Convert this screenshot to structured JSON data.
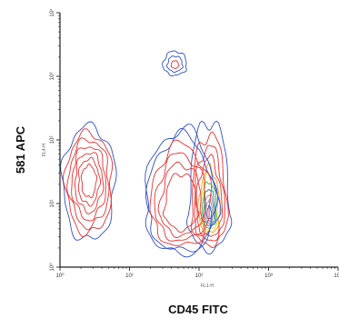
{
  "chart_data": {
    "type": "contour",
    "xlabel": "CD45 FITC",
    "ylabel": "581 APC",
    "x_scale": "log",
    "y_scale": "log",
    "xlim": [
      1,
      10000
    ],
    "ylim": [
      1,
      10000
    ],
    "x_ticks": [
      {
        "value": 1,
        "label": "10⁰"
      },
      {
        "value": 10,
        "label": "10¹"
      },
      {
        "value": 100,
        "label": "10²"
      },
      {
        "value": 1000,
        "label": "10³"
      },
      {
        "value": 10000,
        "label": "10⁴"
      }
    ],
    "y_ticks": [
      {
        "value": 1,
        "label": "10⁰"
      },
      {
        "value": 10,
        "label": "10¹"
      },
      {
        "value": 100,
        "label": "10²"
      },
      {
        "value": 1000,
        "label": "10³"
      },
      {
        "value": 10000,
        "label": "10⁴"
      }
    ],
    "inner_xlabel": "FL1-H",
    "inner_ylabel": "FL4-H",
    "grid": false,
    "populations": [
      {
        "cx": 140,
        "cy": 6.5,
        "wx": 0.3,
        "wyUp": 1.5,
        "wyDown": 0.55,
        "levels": [
          {
            "s": 1.0,
            "color": "#3050c8"
          },
          {
            "s": 0.85,
            "color": "#e83030"
          },
          {
            "s": 0.72,
            "color": "#e83030"
          },
          {
            "s": 0.6,
            "color": "#e83030"
          },
          {
            "s": 0.5,
            "color": "#f0a020"
          },
          {
            "s": 0.42,
            "color": "#e8d020"
          },
          {
            "s": 0.35,
            "color": "#40b040"
          },
          {
            "s": 0.28,
            "color": "#208080"
          },
          {
            "s": 0.22,
            "color": "#9090a0"
          },
          {
            "s": 0.16,
            "color": "#9090a0"
          },
          {
            "s": 0.1,
            "color": "#3050c8"
          }
        ]
      },
      {
        "cx": 55,
        "cy": 8,
        "wx": 0.52,
        "wyUp": 1.25,
        "wyDown": 0.7,
        "levels": [
          {
            "s": 1.0,
            "color": "#3050c8"
          },
          {
            "s": 0.93,
            "color": "#3050c8"
          },
          {
            "s": 0.82,
            "color": "#e83030"
          },
          {
            "s": 0.7,
            "color": "#e83030"
          },
          {
            "s": 0.58,
            "color": "#e83030"
          },
          {
            "s": 0.46,
            "color": "#e83030"
          }
        ]
      },
      {
        "cx": 2.6,
        "cy": 23,
        "wx": 0.38,
        "wyUp": 0.85,
        "wyDown": 0.95,
        "levels": [
          {
            "s": 1.0,
            "color": "#3050c8"
          },
          {
            "s": 0.88,
            "color": "#e83030"
          },
          {
            "s": 0.76,
            "color": "#e83030"
          },
          {
            "s": 0.64,
            "color": "#e83030"
          },
          {
            "s": 0.52,
            "color": "#e83030"
          },
          {
            "s": 0.4,
            "color": "#e83030"
          },
          {
            "s": 0.28,
            "color": "#e83030"
          }
        ]
      },
      {
        "cx": 45,
        "cy": 1500,
        "wx": 0.17,
        "wyUp": 0.22,
        "wyDown": 0.16,
        "levels": [
          {
            "s": 1.0,
            "color": "#3050c8"
          },
          {
            "s": 0.65,
            "color": "#3050c8"
          },
          {
            "s": 0.32,
            "color": "#e83030"
          }
        ]
      }
    ]
  }
}
